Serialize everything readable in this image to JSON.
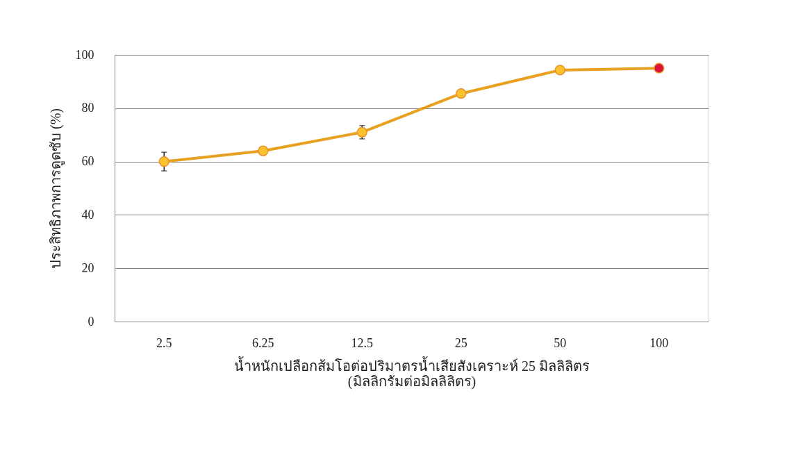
{
  "chart_data": {
    "type": "line",
    "xlabel": "น้ำหนักเปลือกส้มโอต่อปริมาตรน้ำเสียสังเคราะห์ 25 มิลลิลิตร\n(มิลลิกรัมต่อมิลลิลิตร)",
    "ylabel": "ประสิทธิภาพการดูดซับ (%)",
    "categories": [
      "2.5",
      "6.25",
      "12.5",
      "25",
      "50",
      "100"
    ],
    "series": [
      {
        "color": "#e8a020",
        "values": [
          60,
          64,
          71,
          85.5,
          94.3,
          95
        ],
        "errors": [
          3.5,
          null,
          2.5,
          null,
          null,
          null
        ],
        "colors": [
          "#fcc22d",
          "#fcc22d",
          "#fcc22d",
          "#fcc22d",
          "#fcc22d",
          "#dc143c"
        ]
      }
    ],
    "ylim": [
      0,
      100
    ],
    "yticks": [
      0,
      20,
      40,
      60,
      80,
      100
    ],
    "grid": "y",
    "marker": "circle",
    "line_style": "solid"
  }
}
